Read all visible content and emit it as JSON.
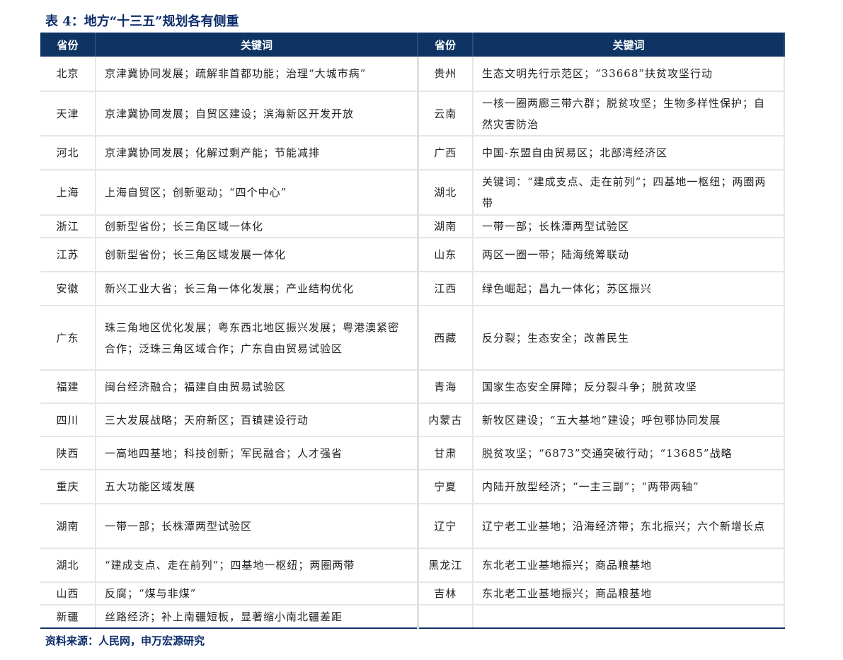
{
  "title": "表 4：地方“十三五”规划各有侧重",
  "headers": {
    "province": "省份",
    "keywords": "关键词"
  },
  "rows": [
    {
      "l": [
        "北京",
        "京津冀协同发展；疏解非首都功能；治理“大城市病”"
      ],
      "r": [
        "贵州",
        "生态文明先行示范区；“33668”扶贫攻坚行动"
      ]
    },
    {
      "l": [
        "天津",
        "京津冀协同发展；自贸区建设；滨海新区开发开放"
      ],
      "r": [
        "云南",
        "一核一圈两廊三带六群；脱贫攻坚；生物多样性保护；自然灾害防治"
      ]
    },
    {
      "l": [
        "河北",
        "京津冀协同发展；化解过剩产能；节能减排"
      ],
      "r": [
        "广西",
        "中国-东盟自由贸易区；北部湾经济区"
      ]
    },
    {
      "l": [
        "上海",
        "上海自贸区；创新驱动；“四个中心”"
      ],
      "r": [
        "湖北",
        "关键词：“建成支点、走在前列”；四基地一枢纽；两圈两带"
      ]
    },
    {
      "l": [
        "浙江",
        "创新型省份；长三角区域一体化"
      ],
      "r": [
        "湖南",
        "一带一部；长株潭两型试验区"
      ]
    },
    {
      "l": [
        "江苏",
        "创新型省份；长三角区域发展一体化"
      ],
      "r": [
        "山东",
        "两区一圈一带；陆海统筹联动"
      ]
    },
    {
      "l": [
        "安徽",
        "新兴工业大省；长三角一体化发展；产业结构优化"
      ],
      "r": [
        "江西",
        "绿色崛起；昌九一体化；苏区振兴"
      ]
    },
    {
      "l": [
        "广东",
        "珠三角地区优化发展；粤东西北地区振兴发展；粤港澳紧密合作；泛珠三角区域合作；广东自由贸易试验区"
      ],
      "r": [
        "西藏",
        "反分裂；生态安全；改善民生"
      ]
    },
    {
      "l": [
        "福建",
        "闽台经济融合；福建自由贸易试验区"
      ],
      "r": [
        "青海",
        "国家生态安全屏障；反分裂斗争；脱贫攻坚"
      ]
    },
    {
      "l": [
        "四川",
        "三大发展战略；天府新区；百镇建设行动"
      ],
      "r": [
        "内蒙古",
        "新牧区建设；“五大基地”建设；呼包鄂协同发展"
      ]
    },
    {
      "l": [
        "陕西",
        "一高地四基地；科技创新；军民融合；人才强省"
      ],
      "r": [
        "甘肃",
        "脱贫攻坚；“6873”交通突破行动；“13685”战略"
      ]
    },
    {
      "l": [
        "重庆",
        "五大功能区域发展"
      ],
      "r": [
        "宁夏",
        "内陆开放型经济；“一主三副”；“两带两轴”"
      ]
    },
    {
      "l": [
        "湖南",
        "一带一部；长株潭两型试验区"
      ],
      "r": [
        "辽宁",
        "辽宁老工业基地；沿海经济带；东北振兴；六个新增长点"
      ]
    },
    {
      "l": [
        "湖北",
        "“建成支点、走在前列”；四基地一枢纽；两圈两带"
      ],
      "r": [
        "黑龙江",
        "东北老工业基地振兴；商品粮基地"
      ]
    },
    {
      "l": [
        "山西",
        "反腐；“煤与非煤”"
      ],
      "r": [
        "吉林",
        "东北老工业基地振兴；商品粮基地"
      ]
    },
    {
      "l": [
        "新疆",
        "丝路经济；补上南疆短板，显著缩小南北疆差距"
      ],
      "r": [
        "",
        ""
      ]
    }
  ],
  "source": "资料来源：人民网，申万宏源研究"
}
